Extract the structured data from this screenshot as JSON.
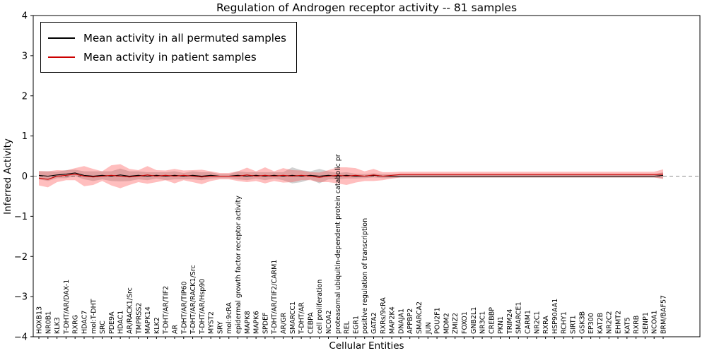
{
  "chart_data": {
    "type": "line",
    "title": "Regulation of Androgen receptor activity -- 81 samples",
    "xlabel": "Cellular Entities",
    "ylabel": "Inferred Activity",
    "ylim": [
      -4,
      4
    ],
    "yticks": [
      -4,
      -3,
      -2,
      -1,
      0,
      1,
      2,
      3,
      4
    ],
    "grid": false,
    "legend_position": "upper left",
    "categories": [
      "HOXB13",
      "NR0B1",
      "KLK3",
      "T-DHT/AR/DAX-1",
      "RXRG",
      "HDAC7",
      "mol:T-DHT",
      "SRC",
      "PDE9A",
      "HDAC1",
      "AR/RACK1/Src",
      "TMPRSS2",
      "MAPK14",
      "KLK2",
      "T-DHT/AR/TIF2",
      "AR",
      "T-DHT/AR/TIP60",
      "T-DHT/AR/RACK1/Src",
      "T-DHT/AR/Hsp90",
      "MYST2",
      "SRY",
      "mol:9cRA",
      "epidermal growth factor receptor activity",
      "MAPK8",
      "MAPK6",
      "SPDEF",
      "T-DHT/AR/TIF2/CARM1",
      "AR/GR",
      "SMARCC1",
      "T-DHT/AR",
      "CEBPA",
      "cell proliferation",
      "NCOA2",
      "proteasomal ubiquitin-dependent protein catabolic pr",
      "REL",
      "EGR1",
      "positive regulation of transcription",
      "GATA2",
      "RXRs/9cRA",
      "MAP2K4",
      "DNAJA1",
      "APPBP2",
      "SMARCA2",
      "JUN",
      "POU2F1",
      "MDM2",
      "ZMIZ2",
      "FOXO1",
      "GNB2L1",
      "NR3C1",
      "CREBBP",
      "PKN1",
      "TRIM24",
      "SMARCE1",
      "CARM1",
      "NR2C1",
      "RXRA",
      "HSP90AA1",
      "RCHY1",
      "SIRT1",
      "GSK3B",
      "EP300",
      "KAT2B",
      "NR2C2",
      "EHMT2",
      "KAT5",
      "RXRB",
      "SENP1",
      "NCOA1",
      "BRM/BAF57"
    ],
    "series": [
      {
        "name": "Mean activity in all permuted samples",
        "color": "#000000",
        "band_color": "#999999",
        "band_opacity": 0.45,
        "values": [
          0.02,
          0,
          0.03,
          0.05,
          0.08,
          0.02,
          0,
          0.02,
          0,
          0.03,
          0,
          0.02,
          0,
          0.02,
          0,
          0.02,
          0,
          0.02,
          0,
          0.02,
          0,
          0,
          0.02,
          0,
          0.02,
          0,
          0.02,
          0,
          0.02,
          0,
          0.02,
          0,
          0.02,
          0,
          0.02,
          0,
          0,
          0.02,
          0,
          0,
          0,
          0,
          0,
          0,
          0,
          0,
          0,
          0,
          0,
          0,
          0,
          0,
          0,
          0,
          0,
          0,
          0,
          0,
          0,
          0,
          0,
          0,
          0,
          0,
          0,
          0,
          0,
          0,
          0,
          0.02
        ],
        "band": [
          0.1,
          0.12,
          0.08,
          0.1,
          0.08,
          0.1,
          0.12,
          0.1,
          0.12,
          0.16,
          0.12,
          0.1,
          0.1,
          0.08,
          0.1,
          0.1,
          0.08,
          0.1,
          0.1,
          0.08,
          0.05,
          0.05,
          0.1,
          0.1,
          0.08,
          0.1,
          0.08,
          0.1,
          0.2,
          0.15,
          0.1,
          0.18,
          0.1,
          0.08,
          0.08,
          0.06,
          0.05,
          0.05,
          0.05,
          0.05,
          0.04,
          0.04,
          0.04,
          0.04,
          0.04,
          0.04,
          0.04,
          0.04,
          0.04,
          0.04,
          0.04,
          0.04,
          0.04,
          0.04,
          0.04,
          0.04,
          0.04,
          0.04,
          0.04,
          0.04,
          0.04,
          0.04,
          0.04,
          0.04,
          0.04,
          0.04,
          0.04,
          0.04,
          0.04,
          0.08
        ]
      },
      {
        "name": "Mean activity in patient samples",
        "color": "#cc0000",
        "band_color": "#ff4444",
        "band_opacity": 0.35,
        "values": [
          -0.05,
          -0.08,
          0,
          0.02,
          0.05,
          0,
          -0.02,
          0,
          0.02,
          0,
          -0.02,
          0,
          0.03,
          0,
          0.02,
          0,
          0.02,
          0,
          -0.02,
          0,
          0,
          0,
          0,
          0.03,
          0,
          0.02,
          0,
          0.02,
          0,
          0.02,
          0,
          -0.03,
          0,
          0.02,
          0,
          0.02,
          0,
          0.03,
          0,
          0.02,
          0.04,
          0.04,
          0.04,
          0.04,
          0.04,
          0.04,
          0.04,
          0.04,
          0.04,
          0.04,
          0.04,
          0.04,
          0.04,
          0.04,
          0.04,
          0.04,
          0.04,
          0.04,
          0.04,
          0.04,
          0.04,
          0.04,
          0.04,
          0.04,
          0.04,
          0.04,
          0.04,
          0.04,
          0.04,
          0.05
        ],
        "band": [
          0.18,
          0.2,
          0.15,
          0.12,
          0.15,
          0.25,
          0.2,
          0.12,
          0.25,
          0.3,
          0.2,
          0.15,
          0.22,
          0.15,
          0.12,
          0.18,
          0.12,
          0.15,
          0.18,
          0.12,
          0.08,
          0.08,
          0.12,
          0.18,
          0.12,
          0.2,
          0.12,
          0.18,
          0.15,
          0.12,
          0.1,
          0.12,
          0.15,
          0.2,
          0.22,
          0.18,
          0.12,
          0.15,
          0.1,
          0.08,
          0.07,
          0.07,
          0.07,
          0.07,
          0.07,
          0.07,
          0.07,
          0.07,
          0.07,
          0.07,
          0.07,
          0.07,
          0.07,
          0.07,
          0.07,
          0.07,
          0.07,
          0.07,
          0.07,
          0.07,
          0.07,
          0.07,
          0.07,
          0.07,
          0.07,
          0.07,
          0.07,
          0.07,
          0.07,
          0.12
        ]
      }
    ]
  }
}
